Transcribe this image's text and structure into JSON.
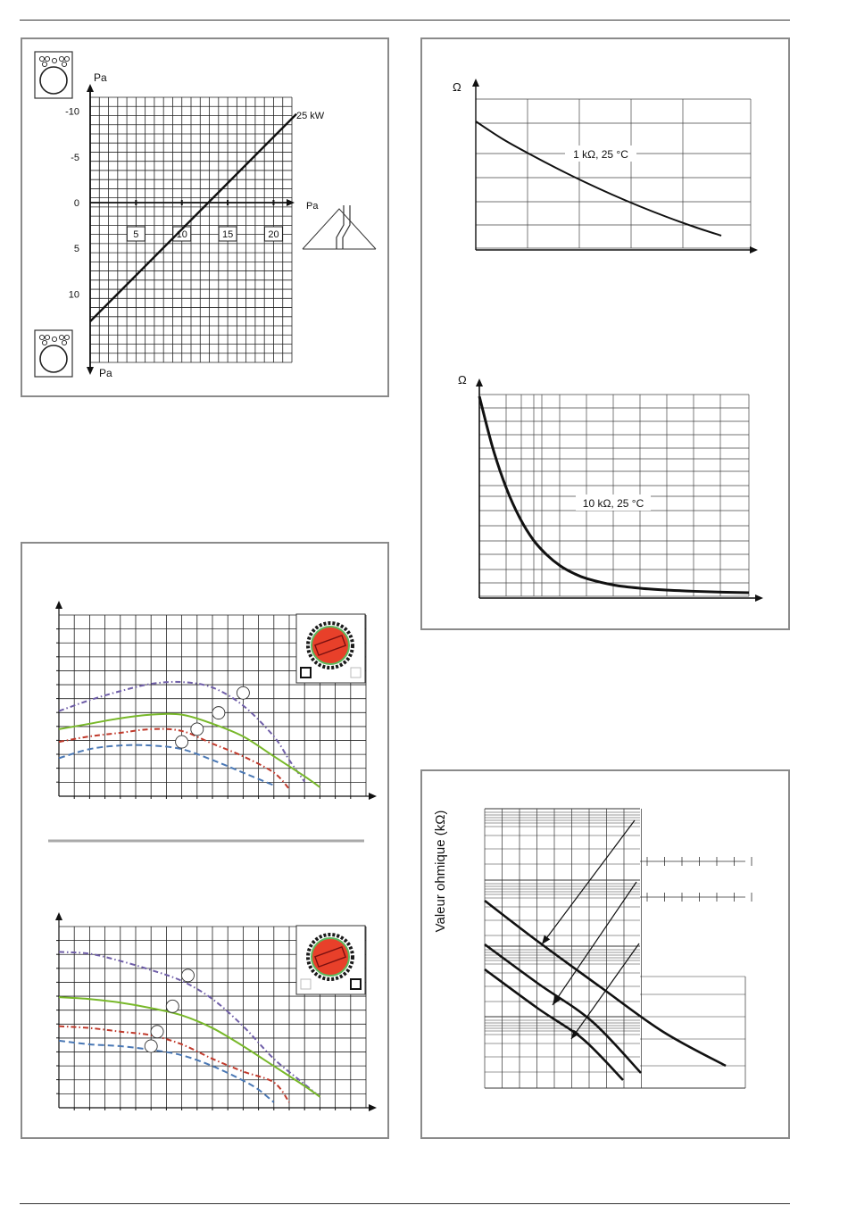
{
  "chart_data": [
    {
      "id": "chimney-pressure",
      "type": "line",
      "y_axis_label_top": "Pa",
      "y_axis_label_bottom": "Pa",
      "x_axis_label": "Pa",
      "y_tick_labels": [
        "-10",
        "-5",
        "0",
        "5",
        "10"
      ],
      "x_tick_labels": [
        "5",
        "10",
        "15",
        "20"
      ],
      "series": [
        {
          "name": "25 kW",
          "points": [
            [
              0,
              13
            ],
            [
              22.5,
              -9.7
            ]
          ]
        }
      ],
      "xlim": [
        0,
        22.5
      ],
      "ylim": [
        15,
        -10
      ],
      "icons": [
        "boiler-icon",
        "roof-chimney-icon"
      ],
      "grid": true
    },
    {
      "id": "sensor-1k",
      "type": "line",
      "y_axis_label": "Ω",
      "series": [
        {
          "name": "1 kΩ, 25 °C",
          "points": [
            [
              0,
              100
            ],
            [
              10,
              90
            ],
            [
              20,
              81.5
            ],
            [
              30,
              73.5
            ],
            [
              40,
              66
            ],
            [
              50,
              59
            ],
            [
              60,
              52.5
            ],
            [
              70,
              46.5
            ],
            [
              80,
              41
            ],
            [
              90,
              36
            ]
          ]
        }
      ],
      "label": "1 kΩ, 25 °C",
      "grid": true
    },
    {
      "id": "sensor-10k",
      "type": "line",
      "y_axis_label": "Ω",
      "series": [
        {
          "name": "10 kΩ, 25 °C",
          "points": [
            [
              0,
              100
            ],
            [
              5,
              74
            ],
            [
              10,
              54
            ],
            [
              15,
              39
            ],
            [
              20,
              28
            ],
            [
              25,
              20.5
            ],
            [
              30,
              15
            ],
            [
              35,
              11.2
            ],
            [
              40,
              8.5
            ],
            [
              50,
              5.3
            ],
            [
              60,
              3.7
            ],
            [
              70,
              2.8
            ],
            [
              80,
              2.2
            ],
            [
              90,
              1.8
            ],
            [
              100,
              1.5
            ]
          ]
        }
      ],
      "label": "10 kΩ, 25 °C",
      "grid": true
    },
    {
      "id": "pump-curve-constant",
      "type": "line",
      "xlim": [
        0,
        100
      ],
      "ylim": [
        0,
        100
      ],
      "series": [
        {
          "name": "",
          "color": "#6f5ea8",
          "style": "dash-dot",
          "points": [
            [
              0,
              47
            ],
            [
              10,
              53
            ],
            [
              20,
              58
            ],
            [
              30,
              62
            ],
            [
              40,
              63
            ],
            [
              50,
              60
            ],
            [
              60,
              50
            ],
            [
              70,
              33
            ],
            [
              75,
              20
            ],
            [
              80,
              8
            ]
          ]
        },
        {
          "name": "",
          "color": "#78b82a",
          "style": "solid",
          "points": [
            [
              0,
              37
            ],
            [
              10,
              40
            ],
            [
              20,
              43
            ],
            [
              30,
              45
            ],
            [
              40,
              45
            ],
            [
              50,
              40
            ],
            [
              60,
              33
            ],
            [
              70,
              22
            ],
            [
              80,
              11
            ],
            [
              85,
              5
            ]
          ]
        },
        {
          "name": "",
          "color": "#c0392b",
          "style": "dash-dot",
          "points": [
            [
              0,
              30
            ],
            [
              10,
              33
            ],
            [
              20,
              35
            ],
            [
              30,
              37
            ],
            [
              40,
              36
            ],
            [
              50,
              29
            ],
            [
              60,
              22
            ],
            [
              70,
              13
            ],
            [
              75,
              4
            ]
          ]
        },
        {
          "name": "",
          "color": "#4a78b5",
          "style": "dashed",
          "points": [
            [
              0,
              21
            ],
            [
              10,
              26
            ],
            [
              20,
              28
            ],
            [
              30,
              28
            ],
            [
              40,
              26
            ],
            [
              50,
              20
            ],
            [
              60,
              13
            ],
            [
              70,
              6
            ]
          ]
        }
      ],
      "markers": [
        [
          60,
          57
        ],
        [
          52,
          46
        ],
        [
          45,
          37
        ],
        [
          40,
          30
        ]
      ],
      "icons": [
        "pump-speed-dial-icon",
        "constant-mode-icon"
      ],
      "grid": true
    },
    {
      "id": "pump-curve-proportional",
      "type": "line",
      "xlim": [
        0,
        100
      ],
      "ylim": [
        0,
        100
      ],
      "series": [
        {
          "name": "",
          "color": "#6f5ea8",
          "style": "dash-dot",
          "points": [
            [
              0,
              86
            ],
            [
              10,
              85
            ],
            [
              20,
              81
            ],
            [
              30,
              76
            ],
            [
              40,
              70
            ],
            [
              50,
              60
            ],
            [
              60,
              45
            ],
            [
              70,
              27
            ],
            [
              80,
              13
            ],
            [
              85,
              6
            ]
          ]
        },
        {
          "name": "",
          "color": "#78b82a",
          "style": "solid",
          "points": [
            [
              0,
              61
            ],
            [
              10,
              60
            ],
            [
              20,
              58
            ],
            [
              30,
              55
            ],
            [
              40,
              51
            ],
            [
              50,
              44
            ],
            [
              60,
              34
            ],
            [
              70,
              23
            ],
            [
              80,
              12
            ],
            [
              85,
              6
            ]
          ]
        },
        {
          "name": "",
          "color": "#c0392b",
          "style": "dash-dot",
          "points": [
            [
              0,
              45
            ],
            [
              10,
              44
            ],
            [
              20,
              42
            ],
            [
              30,
              40
            ],
            [
              40,
              35
            ],
            [
              50,
              27
            ],
            [
              60,
              20
            ],
            [
              70,
              14
            ],
            [
              75,
              3
            ]
          ]
        },
        {
          "name": "",
          "color": "#4a78b5",
          "style": "dashed",
          "points": [
            [
              0,
              37
            ],
            [
              10,
              35
            ],
            [
              20,
              34
            ],
            [
              30,
              32
            ],
            [
              40,
              29
            ],
            [
              50,
              23
            ],
            [
              60,
              15
            ],
            [
              65,
              10
            ],
            [
              70,
              3
            ]
          ]
        }
      ],
      "markers": [
        [
          42,
          73
        ],
        [
          37,
          56
        ],
        [
          32,
          42
        ],
        [
          30,
          34
        ]
      ],
      "icons": [
        "pump-speed-dial-icon",
        "proportional-mode-icon"
      ],
      "grid": true
    },
    {
      "id": "ntc-resistance",
      "type": "line",
      "y_axis_label": "Valeur ohmique  (kΩ)",
      "series": [
        {
          "name": "",
          "points": [
            [
              0,
              90
            ],
            [
              20,
              60
            ],
            [
              40,
              38
            ],
            [
              60,
              20
            ],
            [
              85,
              5
            ]
          ]
        },
        {
          "name": "",
          "points": [
            [
              0,
              65
            ],
            [
              20,
              42
            ],
            [
              40,
              22
            ],
            [
              60,
              8
            ],
            [
              70,
              2
            ]
          ]
        },
        {
          "name": "",
          "points": [
            [
              0,
              56
            ],
            [
              20,
              35
            ],
            [
              40,
              15
            ],
            [
              55,
              2
            ]
          ]
        }
      ],
      "arrows": 3,
      "grid": true
    }
  ]
}
